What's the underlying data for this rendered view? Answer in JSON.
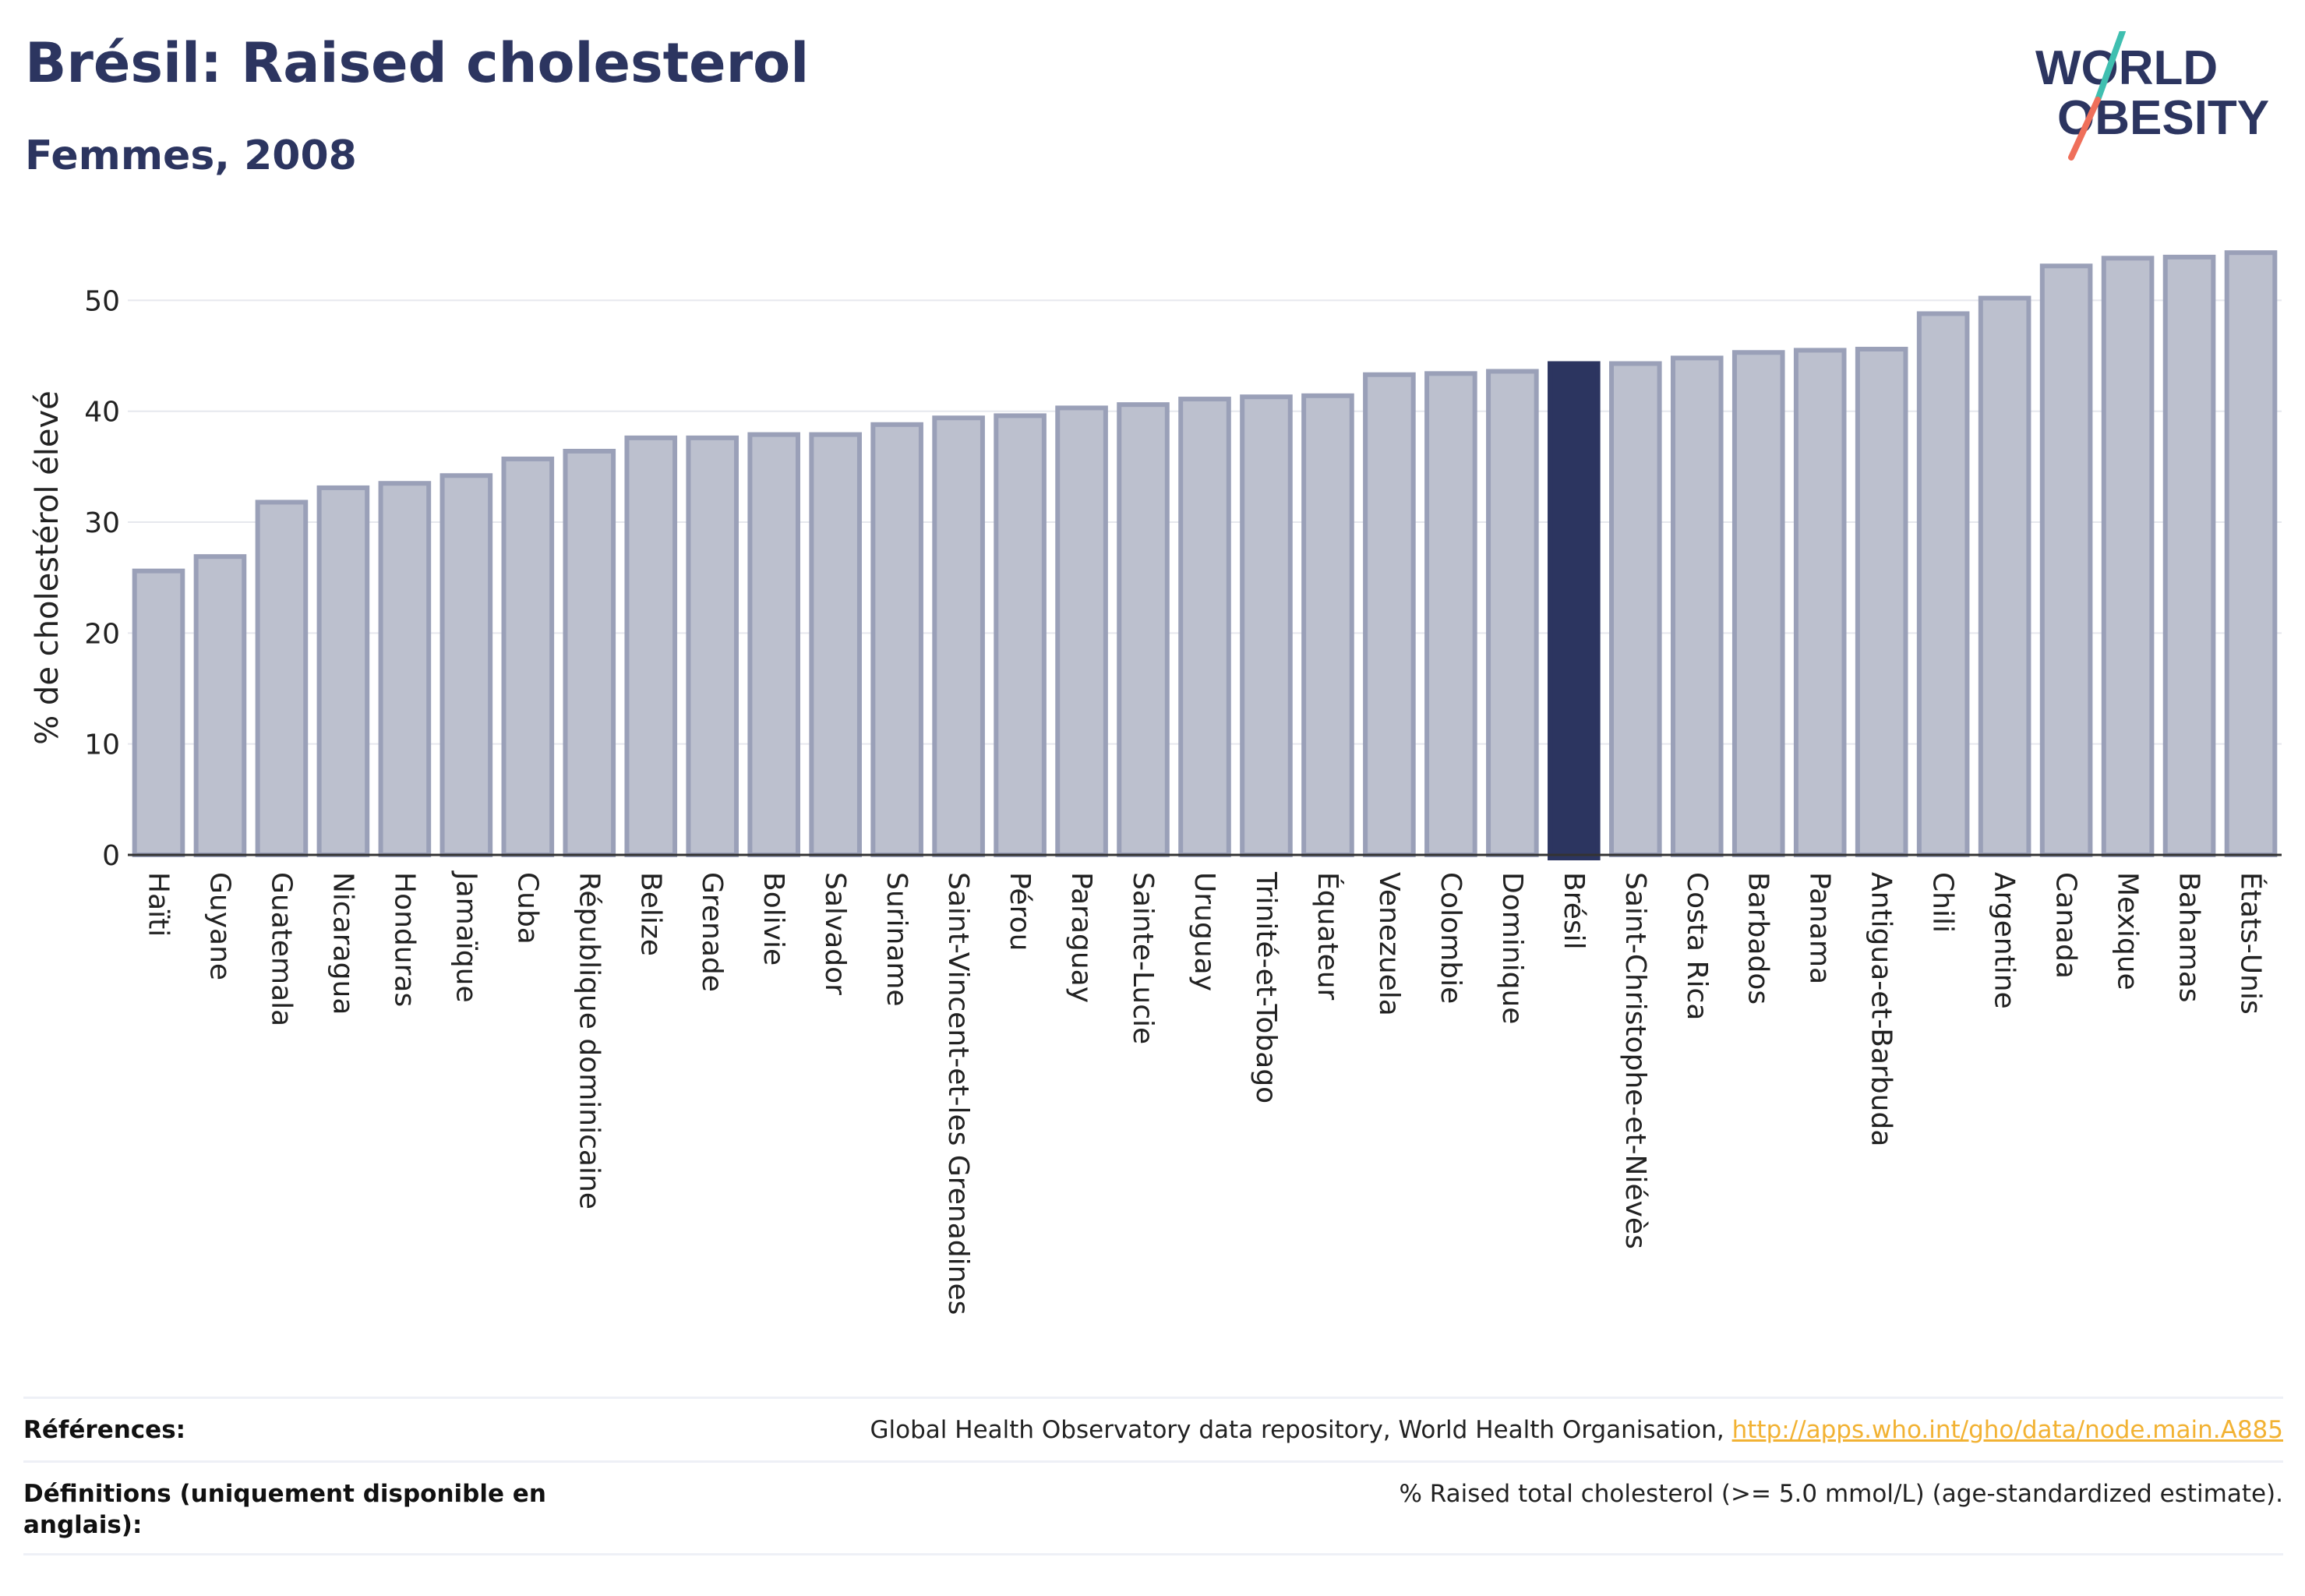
{
  "header": {
    "title": "Brésil: Raised cholesterol",
    "subtitle": "Femmes, 2008"
  },
  "logo": {
    "line1": "WORLD",
    "line2": "OBESITY"
  },
  "colors": {
    "bar_fill": "#bcc0ce",
    "bar_stroke": "#9aa0b8",
    "highlight": "#2c3560",
    "grid": "#e6e8ee",
    "accent_teal": "#3fbfb0",
    "accent_coral": "#ef6f5a",
    "link": "#f2b233"
  },
  "chart_data": {
    "type": "bar",
    "title": "Brésil: Raised cholesterol",
    "subtitle": "Femmes, 2008",
    "xlabel": "",
    "ylabel": "% de cholestérol élevé",
    "ylim": [
      0,
      56
    ],
    "yticks": [
      0,
      10,
      20,
      30,
      40,
      50
    ],
    "grid": true,
    "highlight": "Brésil",
    "categories": [
      "Haïti",
      "Guyane",
      "Guatemala",
      "Nicaragua",
      "Honduras",
      "Jamaïque",
      "Cuba",
      "République dominicaine",
      "Belize",
      "Grenade",
      "Bolivie",
      "Salvador",
      "Suriname",
      "Saint-Vincent-et-les Grenadines",
      "Pérou",
      "Paraguay",
      "Sainte-Lucie",
      "Uruguay",
      "Trinité-et-Tobago",
      "Équateur",
      "Venezuela",
      "Colombie",
      "Dominique",
      "Brésil",
      "Saint-Christophe-et-Niévès",
      "Costa Rica",
      "Barbados",
      "Panama",
      "Antigua-et-Barbuda",
      "Chili",
      "Argentine",
      "Canada",
      "Mexique",
      "Bahamas",
      "États-Unis"
    ],
    "values": [
      25.6,
      26.9,
      31.8,
      33.1,
      33.5,
      34.2,
      35.7,
      36.4,
      37.6,
      37.6,
      37.9,
      37.9,
      38.8,
      39.4,
      39.6,
      40.3,
      40.6,
      41.1,
      41.3,
      41.4,
      43.3,
      43.4,
      43.6,
      44.3,
      44.3,
      44.8,
      45.3,
      45.5,
      45.6,
      48.8,
      50.2,
      53.1,
      53.8,
      53.9,
      54.3
    ]
  },
  "footer": {
    "refs_label": "Références:",
    "refs_text": "Global Health Observatory data repository, World Health Organisation, ",
    "refs_link": "http://apps.who.int/gho/data/node.main.A885",
    "defs_label": "Définitions (uniquement disponible en anglais):",
    "defs_text": "% Raised total cholesterol (>= 5.0 mmol/L) (age-standardized estimate)."
  }
}
